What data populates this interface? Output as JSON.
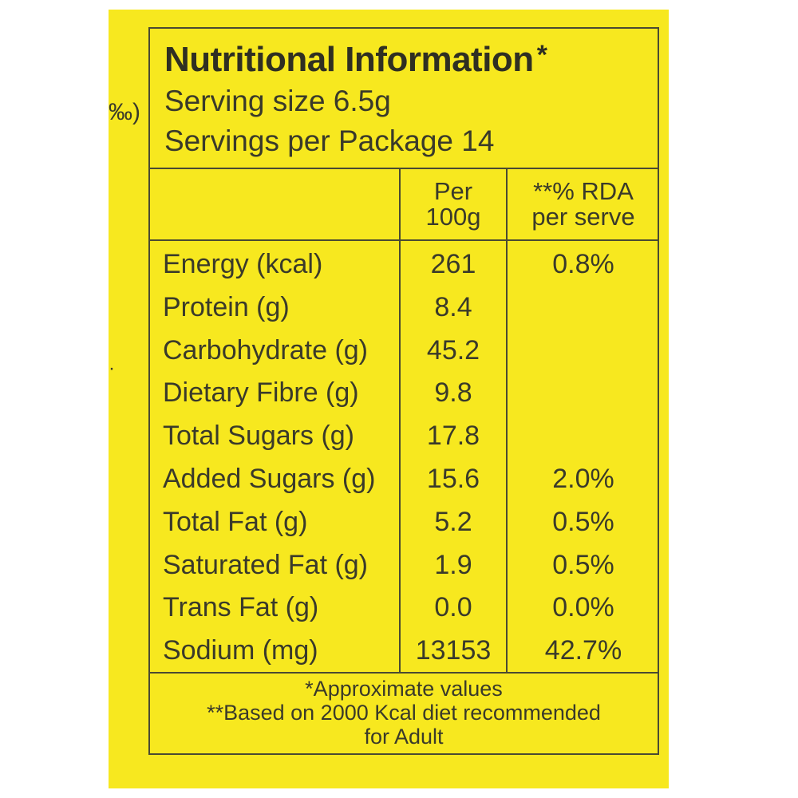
{
  "edge_text": {
    "top": "‰)",
    "dot": "·"
  },
  "header": {
    "title": "Nutritional Information",
    "title_mark": "*",
    "serving_size": "Serving size 6.5g",
    "servings_per_package": "Servings per Package 14"
  },
  "columns": {
    "per100_line1": "Per",
    "per100_line2": "100g",
    "rda_line1": "**% RDA",
    "rda_line2": "per serve"
  },
  "rows": [
    {
      "nutrient": "Energy (kcal)",
      "per100": "261",
      "rda": "0.8%"
    },
    {
      "nutrient": "Protein (g)",
      "per100": "8.4",
      "rda": ""
    },
    {
      "nutrient": "Carbohydrate (g)",
      "per100": "45.2",
      "rda": ""
    },
    {
      "nutrient": "Dietary Fibre (g)",
      "per100": "9.8",
      "rda": ""
    },
    {
      "nutrient": "Total Sugars (g)",
      "per100": "17.8",
      "rda": ""
    },
    {
      "nutrient": "Added Sugars (g)",
      "per100": "15.6",
      "rda": "2.0%"
    },
    {
      "nutrient": "Total Fat (g)",
      "per100": "5.2",
      "rda": "0.5%"
    },
    {
      "nutrient": "Saturated Fat (g)",
      "per100": "1.9",
      "rda": "0.5%"
    },
    {
      "nutrient": "Trans Fat (g)",
      "per100": "0.0",
      "rda": "0.0%"
    },
    {
      "nutrient": "Sodium (mg)",
      "per100": "13153",
      "rda": "42.7%"
    }
  ],
  "footer": {
    "line1": "*Approximate values",
    "line2": "**Based on 2000 Kcal diet recommended",
    "line3": "for Adult"
  },
  "colors": {
    "background": "#f7e81f",
    "text": "#3a3a2a",
    "border": "#4a4a32"
  }
}
